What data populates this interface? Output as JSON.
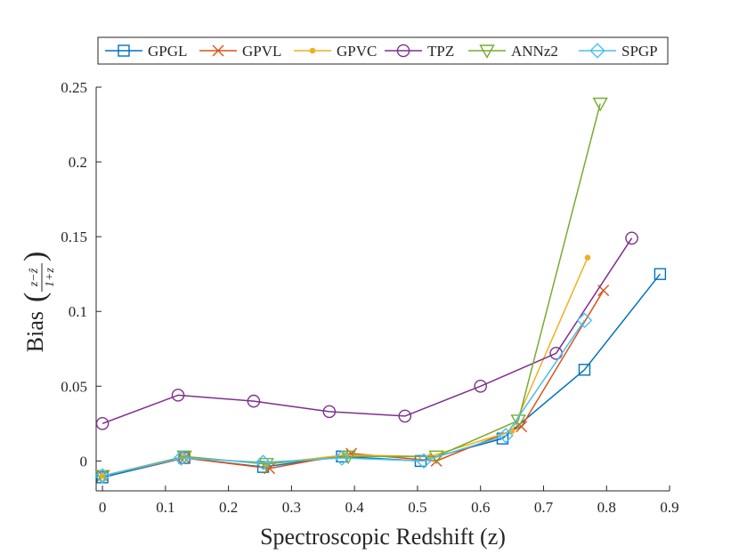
{
  "chart_data": {
    "type": "line",
    "title": "",
    "xlabel": "Spectroscopic Redshift (z)",
    "ylabel_prefix": "Bias",
    "ylabel_numerator": "z−ẑ",
    "ylabel_denominator": "1+z",
    "xlim": [
      -0.01,
      0.9
    ],
    "ylim": [
      -0.02,
      0.25
    ],
    "xticks": [
      0,
      0.1,
      0.2,
      0.3,
      0.4,
      0.5,
      0.6,
      0.7,
      0.8,
      0.9
    ],
    "xtick_labels": [
      "0",
      "0.1",
      "0.2",
      "0.3",
      "0.4",
      "0.5",
      "0.6",
      "0.7",
      "0.8",
      "0.9"
    ],
    "yticks": [
      0,
      0.05,
      0.1,
      0.15,
      0.2,
      0.25
    ],
    "ytick_labels": [
      "0",
      "0.05",
      "0.1",
      "0.15",
      "0.2",
      "0.25"
    ],
    "legend_position": "top",
    "series": [
      {
        "name": "GPGL",
        "color": "#0072BD",
        "marker": "square",
        "x": [
          0,
          0.13,
          0.255,
          0.38,
          0.505,
          0.635,
          0.765,
          0.885
        ],
        "y": [
          -0.011,
          0.002,
          -0.004,
          0.003,
          0.0,
          0.015,
          0.061,
          0.125
        ]
      },
      {
        "name": "GPVL",
        "color": "#D95319",
        "marker": "x",
        "x": [
          0,
          0.13,
          0.265,
          0.395,
          0.53,
          0.665,
          0.795
        ],
        "y": [
          -0.01,
          0.002,
          -0.005,
          0.005,
          0.0,
          0.023,
          0.114
        ]
      },
      {
        "name": "GPVC",
        "color": "#EDB120",
        "marker": "dot",
        "x": [
          0,
          0.13,
          0.26,
          0.385,
          0.52,
          0.65,
          0.77
        ],
        "y": [
          -0.01,
          0.003,
          -0.002,
          0.004,
          0.003,
          0.02,
          0.136
        ]
      },
      {
        "name": "TPZ",
        "color": "#7E2F8E",
        "marker": "circle",
        "x": [
          0,
          0.12,
          0.24,
          0.36,
          0.48,
          0.6,
          0.72,
          0.84
        ],
        "y": [
          0.025,
          0.044,
          0.04,
          0.033,
          0.03,
          0.05,
          0.072,
          0.149
        ]
      },
      {
        "name": "ANNz2",
        "color": "#77AC30",
        "marker": "triangle-down",
        "x": [
          0,
          0.13,
          0.26,
          0.39,
          0.53,
          0.66,
          0.79
        ],
        "y": [
          -0.01,
          0.003,
          -0.002,
          0.003,
          0.003,
          0.027,
          0.239
        ]
      },
      {
        "name": "SPGP",
        "color": "#4DBEEE",
        "marker": "diamond",
        "x": [
          0,
          0.125,
          0.255,
          0.38,
          0.51,
          0.64,
          0.765
        ],
        "y": [
          -0.01,
          0.002,
          -0.001,
          0.002,
          0.0,
          0.017,
          0.094
        ]
      }
    ]
  }
}
